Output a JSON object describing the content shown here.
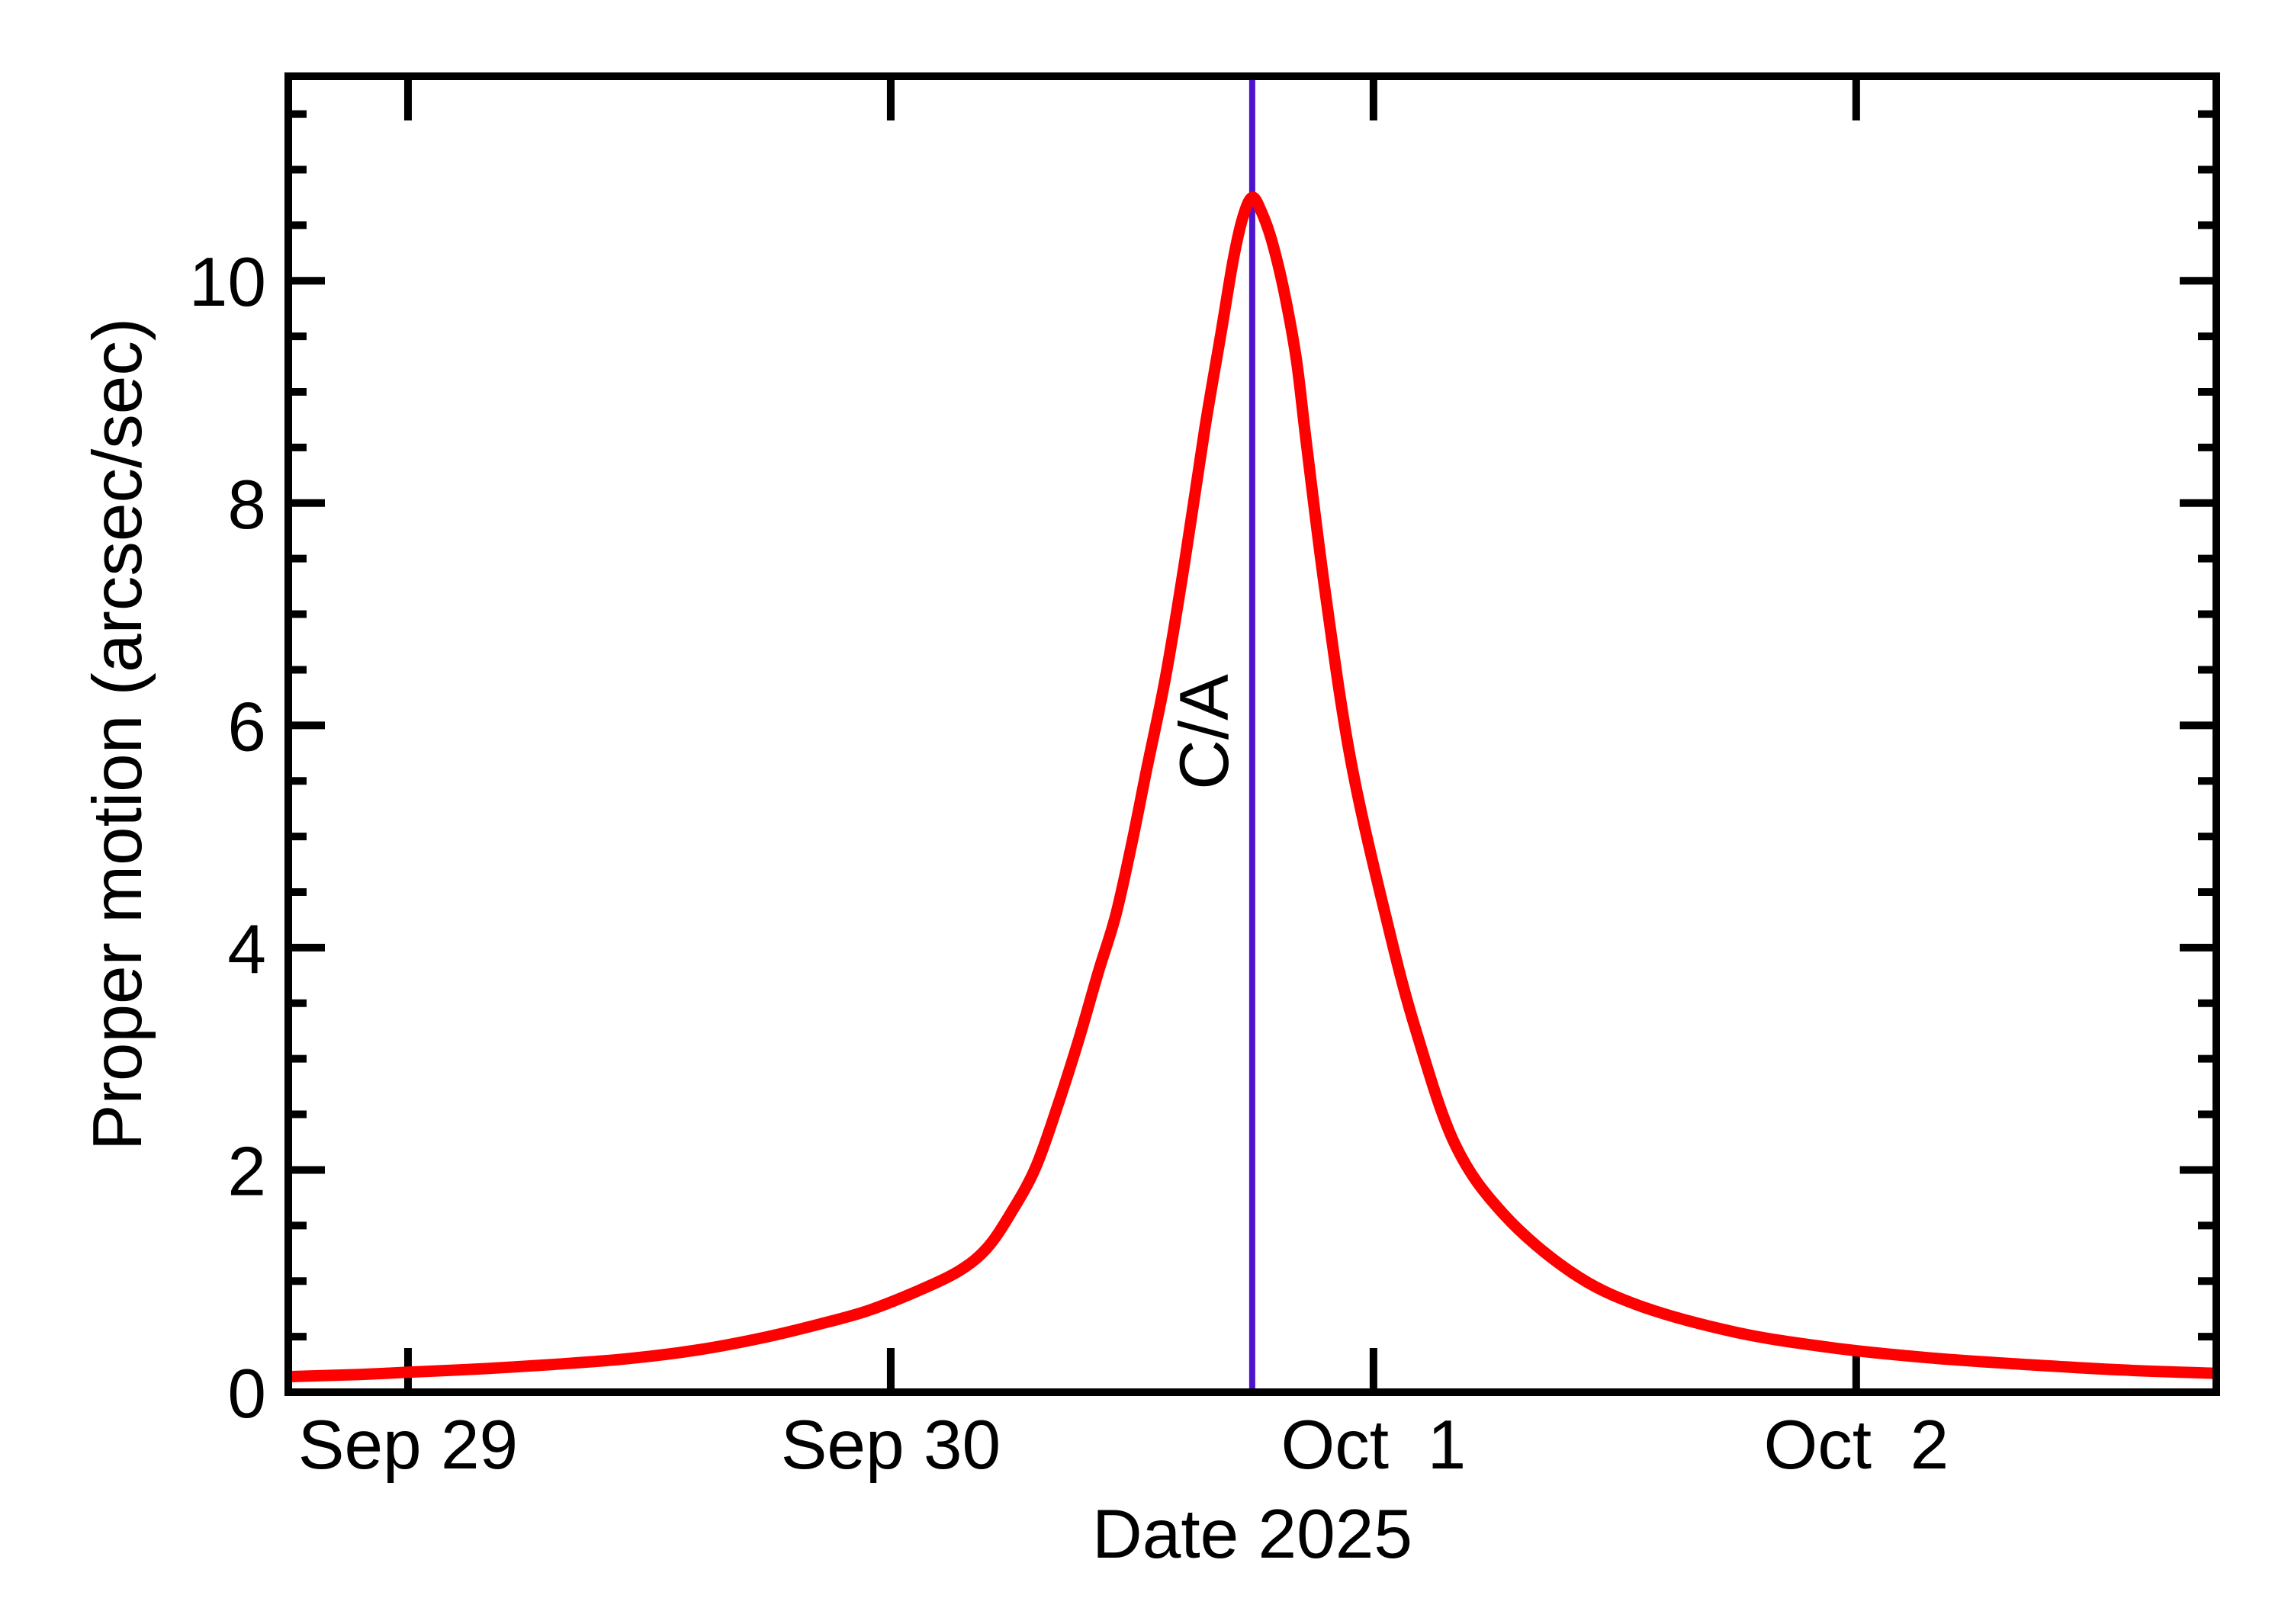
{
  "page": {
    "background": "#FFFFFF"
  },
  "colors": {
    "axis": "#000000",
    "curve": "#FF0000",
    "annotation": "#4D13CF",
    "text": "#000000",
    "background": "#FFFFFF"
  },
  "chart_data": {
    "type": "line",
    "title": "",
    "xlabel": "Date 2025",
    "ylabel": "Proper motion (arcsec/sec)",
    "grid": false,
    "legend": null,
    "x_axis": {
      "unit": "days after Sep 29 2025 00:00",
      "xlim": [
        -0.248,
        3.746
      ],
      "major_ticks": [
        {
          "t": 0,
          "label": "Sep 29"
        },
        {
          "t": 1,
          "label": "Sep 30"
        },
        {
          "t": 2,
          "label": "Oct  1"
        },
        {
          "t": 3,
          "label": "Oct  2"
        }
      ],
      "minor_ticks": []
    },
    "y_axis": {
      "ylim": [
        0,
        11.84
      ],
      "major_ticks": [
        {
          "v": 0,
          "label": "0"
        },
        {
          "v": 2,
          "label": "2"
        },
        {
          "v": 4,
          "label": "4"
        },
        {
          "v": 6,
          "label": "6"
        },
        {
          "v": 8,
          "label": "8"
        },
        {
          "v": 10,
          "label": "10"
        }
      ],
      "minor_tick_step": 0.5
    },
    "annotations": [
      {
        "type": "vline",
        "t": 1.7488,
        "label": "C/A",
        "color": "#4D13CF"
      }
    ],
    "peak": {
      "t_days_after_sep29": 1.749,
      "value_arcsec_per_sec": 10.75
    },
    "series": [
      {
        "name": "proper motion",
        "color": "#FF0000",
        "line_width": 15,
        "points": [
          [
            -0.248,
            0.14
          ],
          [
            -0.1,
            0.16
          ],
          [
            0.0,
            0.18
          ],
          [
            0.15,
            0.21
          ],
          [
            0.3,
            0.25
          ],
          [
            0.45,
            0.3
          ],
          [
            0.6,
            0.38
          ],
          [
            0.735,
            0.49
          ],
          [
            0.85,
            0.61
          ],
          [
            0.95,
            0.73
          ],
          [
            1.05,
            0.9
          ],
          [
            1.141,
            1.09
          ],
          [
            1.2,
            1.3
          ],
          [
            1.25,
            1.62
          ],
          [
            1.3,
            2.02
          ],
          [
            1.346,
            2.58
          ],
          [
            1.39,
            3.18
          ],
          [
            1.43,
            3.78
          ],
          [
            1.466,
            4.29
          ],
          [
            1.5,
            4.95
          ],
          [
            1.53,
            5.6
          ],
          [
            1.57,
            6.45
          ],
          [
            1.61,
            7.5
          ],
          [
            1.65,
            8.65
          ],
          [
            1.685,
            9.55
          ],
          [
            1.71,
            10.2
          ],
          [
            1.73,
            10.58
          ],
          [
            1.749,
            10.75
          ],
          [
            1.768,
            10.62
          ],
          [
            1.79,
            10.35
          ],
          [
            1.815,
            9.9
          ],
          [
            1.84,
            9.3
          ],
          [
            1.861,
            8.54
          ],
          [
            1.9,
            7.2
          ],
          [
            1.954,
            5.66
          ],
          [
            2.03,
            4.2
          ],
          [
            2.089,
            3.24
          ],
          [
            2.169,
            2.23
          ],
          [
            2.27,
            1.6
          ],
          [
            2.41,
            1.08
          ],
          [
            2.55,
            0.78
          ],
          [
            2.75,
            0.54
          ],
          [
            2.95,
            0.4
          ],
          [
            3.15,
            0.31
          ],
          [
            3.35,
            0.25
          ],
          [
            3.55,
            0.2
          ],
          [
            3.746,
            0.17
          ]
        ]
      }
    ]
  }
}
